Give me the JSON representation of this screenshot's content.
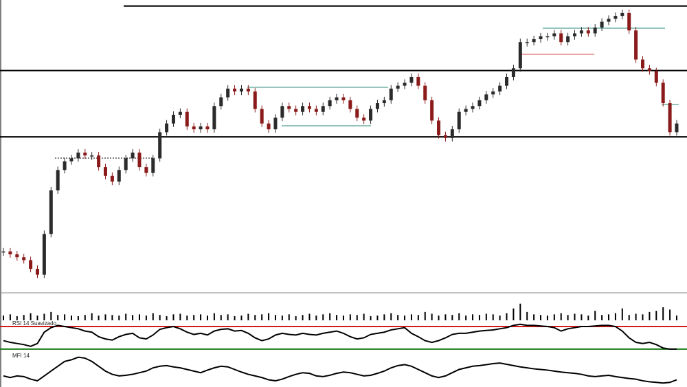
{
  "chart_data": [
    {
      "type": "candlestick",
      "up_color": "#2b2b2b",
      "down_color": "#8b1a1a",
      "ylim": [
        0,
        100
      ],
      "levels": [
        98.4,
        76.2,
        53.4
      ],
      "level_color": "#000000",
      "values": [
        14,
        13,
        12,
        11,
        8,
        6,
        20,
        35,
        42,
        45,
        46,
        48,
        47,
        47,
        43,
        40,
        38,
        42,
        46,
        48,
        43,
        41,
        46,
        55,
        58,
        61,
        62,
        57,
        56,
        57,
        56,
        64,
        67,
        70,
        69,
        70,
        69,
        63,
        58,
        56,
        60,
        64,
        63,
        62,
        64,
        63,
        62,
        64,
        66,
        67,
        66,
        63,
        60,
        59,
        63,
        65,
        66,
        70,
        71,
        72,
        74,
        71,
        66,
        59,
        54,
        53,
        56,
        62,
        63,
        64,
        66,
        68,
        69,
        71,
        74,
        77,
        86,
        86,
        87,
        88,
        88,
        89,
        86,
        88,
        89,
        90,
        89,
        91,
        93,
        94,
        95,
        96,
        90,
        80,
        77,
        76,
        72,
        65,
        55,
        58
      ]
    },
    {
      "type": "bar",
      "color": "#000000",
      "ylim": [
        0,
        30
      ],
      "values": [
        8,
        10,
        7,
        9,
        12,
        8,
        11,
        14,
        9,
        10,
        8,
        7,
        9,
        12,
        8,
        10,
        9,
        8,
        11,
        9,
        10,
        8,
        12,
        9,
        7,
        10,
        11,
        8,
        9,
        10,
        8,
        12,
        9,
        10,
        7,
        8,
        11,
        9,
        10,
        12,
        9,
        8,
        10,
        7,
        9,
        11,
        8,
        10,
        12,
        9,
        8,
        10,
        9,
        11,
        7,
        8,
        10,
        12,
        9,
        8,
        10,
        9,
        14,
        11,
        8,
        10,
        9,
        12,
        8,
        10,
        9,
        11,
        10,
        8,
        12,
        20,
        28,
        14,
        10,
        9,
        8,
        10,
        12,
        9,
        11,
        10,
        8,
        16,
        9,
        10,
        12,
        20,
        9,
        11,
        10,
        14,
        16,
        22,
        18,
        8
      ]
    },
    {
      "type": "line",
      "title": "RSI 14 Suavizado",
      "color": "#000000",
      "ylim": [
        25,
        81
      ],
      "levels": [
        70,
        30
      ],
      "level_colors": [
        "#d11a1a",
        "#1a7a1a"
      ],
      "values": [
        45,
        42,
        40,
        38,
        35,
        40,
        60,
        68,
        72,
        70,
        68,
        66,
        62,
        60,
        52,
        48,
        46,
        52,
        56,
        58,
        50,
        48,
        55,
        65,
        68,
        70,
        66,
        60,
        56,
        58,
        55,
        62,
        65,
        66,
        62,
        63,
        58,
        50,
        45,
        48,
        55,
        58,
        56,
        55,
        58,
        56,
        55,
        58,
        60,
        62,
        58,
        52,
        48,
        50,
        56,
        58,
        60,
        64,
        66,
        68,
        58,
        52,
        45,
        42,
        45,
        50,
        56,
        58,
        58,
        60,
        62,
        63,
        64,
        66,
        68,
        72,
        74,
        72,
        72,
        71,
        70,
        68,
        62,
        66,
        68,
        70,
        70,
        71,
        72,
        72,
        70,
        62,
        50,
        42,
        40,
        42,
        38,
        32,
        30,
        30
      ]
    },
    {
      "type": "line",
      "title": "MFI 14",
      "color": "#000000",
      "ylim": [
        0,
        100
      ],
      "values": [
        30,
        25,
        30,
        28,
        20,
        15,
        30,
        45,
        60,
        75,
        80,
        88,
        85,
        75,
        60,
        45,
        35,
        30,
        32,
        35,
        40,
        45,
        55,
        60,
        62,
        58,
        55,
        50,
        45,
        40,
        48,
        55,
        60,
        58,
        50,
        42,
        35,
        30,
        25,
        18,
        15,
        20,
        28,
        35,
        40,
        38,
        30,
        28,
        32,
        38,
        42,
        40,
        35,
        30,
        32,
        38,
        45,
        55,
        62,
        65,
        60,
        50,
        40,
        30,
        25,
        30,
        40,
        50,
        55,
        60,
        62,
        65,
        68,
        70,
        66,
        62,
        58,
        55,
        52,
        50,
        48,
        45,
        42,
        40,
        38,
        35,
        30,
        28,
        30,
        32,
        28,
        25,
        22,
        20,
        15,
        12,
        10,
        8,
        10,
        18
      ]
    }
  ]
}
